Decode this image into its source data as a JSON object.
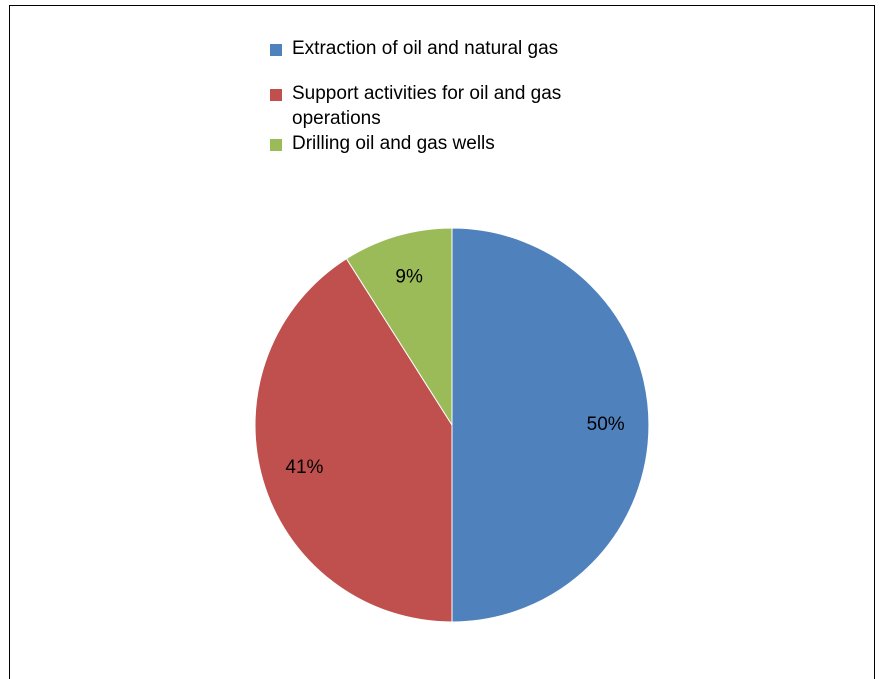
{
  "chart_data": {
    "type": "pie",
    "title": "",
    "categories": [
      "Extraction of oil and natural gas",
      "Support activities for oil and gas operations",
      "Drilling oil and gas wells"
    ],
    "values": [
      50,
      41,
      9
    ],
    "data_labels": [
      "50%",
      "41%",
      "9%"
    ],
    "colors": [
      "#4F81BD",
      "#C0504D",
      "#9BBB59"
    ],
    "legend_position": "top",
    "start_angle": "12 o'clock",
    "direction": "clockwise"
  }
}
